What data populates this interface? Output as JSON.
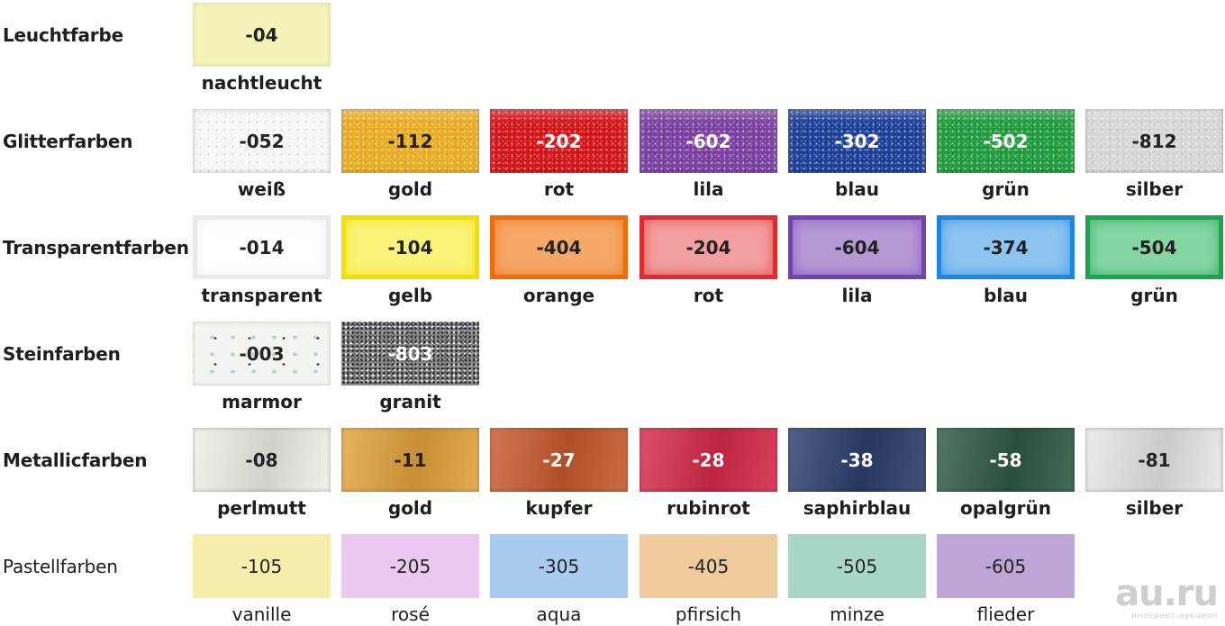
{
  "rows": [
    {
      "label": "Leuchtfarbe",
      "items": [
        {
          "code": "-04",
          "name": "nachtleucht",
          "color": "#f4f3b8",
          "text": "#222"
        }
      ]
    },
    {
      "label": "Glitterfarben",
      "items": [
        {
          "code": "-052",
          "name": "weiß",
          "color": "#f6f6f6",
          "text": "#222"
        },
        {
          "code": "-112",
          "name": "gold",
          "color": "#e8ab22",
          "text": "#222"
        },
        {
          "code": "-202",
          "name": "rot",
          "color": "#d41418",
          "text": "#fff"
        },
        {
          "code": "-602",
          "name": "lila",
          "color": "#7b3fa0",
          "text": "#fff"
        },
        {
          "code": "-302",
          "name": "blau",
          "color": "#1d3f98",
          "text": "#fff"
        },
        {
          "code": "-502",
          "name": "grün",
          "color": "#1f9a3c",
          "text": "#fff"
        },
        {
          "code": "-812",
          "name": "silber",
          "color": "#d4d6d8",
          "text": "#222"
        }
      ]
    },
    {
      "label": "Transparentfarben",
      "items": [
        {
          "code": "-014",
          "name": "transparent",
          "color": "#ffffff",
          "text": "#222",
          "edge": "#e9e9e9"
        },
        {
          "code": "-104",
          "name": "gelb",
          "color": "#fbf37a",
          "text": "#222",
          "edge": "#f2df00"
        },
        {
          "code": "-404",
          "name": "orange",
          "color": "#f5a868",
          "text": "#222",
          "edge": "#ec6b0a"
        },
        {
          "code": "-204",
          "name": "rot",
          "color": "#f3a0a0",
          "text": "#222",
          "edge": "#df2b30"
        },
        {
          "code": "-604",
          "name": "lila",
          "color": "#b69ad6",
          "text": "#222",
          "edge": "#7442b5"
        },
        {
          "code": "-374",
          "name": "blau",
          "color": "#8ec4f0",
          "text": "#222",
          "edge": "#1e86e0"
        },
        {
          "code": "-504",
          "name": "grün",
          "color": "#86d6a4",
          "text": "#222",
          "edge": "#1aa54f"
        }
      ]
    },
    {
      "label": "Steinfarben",
      "items": [
        {
          "code": "-003",
          "name": "marmor",
          "color": "#f2f4ef",
          "text": "#222"
        },
        {
          "code": "-803",
          "name": "granit",
          "color": "#8a8a90",
          "text": "#fff"
        }
      ]
    },
    {
      "label": "Metallicfarben",
      "items": [
        {
          "code": "-08",
          "name": "perlmutt",
          "color": "#efeee6",
          "text": "#222"
        },
        {
          "code": "-11",
          "name": "gold",
          "color": "#e3a23c",
          "text": "#222"
        },
        {
          "code": "-27",
          "name": "kupfer",
          "color": "#c85a2e",
          "text": "#fff"
        },
        {
          "code": "-28",
          "name": "rubinrot",
          "color": "#d62a48",
          "text": "#fff"
        },
        {
          "code": "-38",
          "name": "saphirblau",
          "color": "#2b3f6e",
          "text": "#fff"
        },
        {
          "code": "-58",
          "name": "opalgrün",
          "color": "#2f5a45",
          "text": "#fff"
        },
        {
          "code": "-81",
          "name": "silber",
          "color": "#e6e7e8",
          "text": "#222"
        }
      ]
    },
    {
      "label": "Pastellfarben",
      "items": [
        {
          "code": "-105",
          "name": "vanille",
          "color": "#f6eeaa",
          "text": "#222"
        },
        {
          "code": "-205",
          "name": "rosé",
          "color": "#ebc8ef",
          "text": "#222"
        },
        {
          "code": "-305",
          "name": "aqua",
          "color": "#a9cbee",
          "text": "#222"
        },
        {
          "code": "-405",
          "name": "pfirsich",
          "color": "#efca9d",
          "text": "#222"
        },
        {
          "code": "-505",
          "name": "minze",
          "color": "#a8d6c8",
          "text": "#222"
        },
        {
          "code": "-605",
          "name": "flieder",
          "color": "#bda5d5",
          "text": "#222"
        }
      ]
    }
  ],
  "watermark": {
    "main": "au.ru",
    "sub": "интернет-аукцион"
  }
}
